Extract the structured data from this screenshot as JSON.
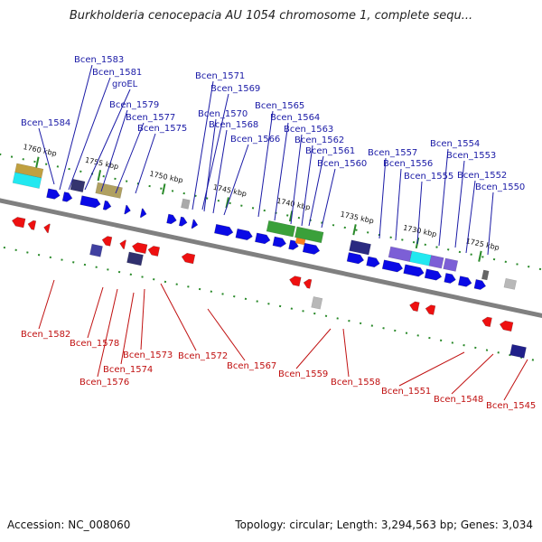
{
  "title": "Burkholderia cenocepacia AU 1054 chromosome 1, complete sequ...",
  "footer": {
    "accession": "Accession: NC_008060",
    "topology": "Topology: circular; Length: 3,294,563 bp; Genes: 3,034"
  },
  "colors": {
    "forward_gene": "#0a0ae6",
    "reverse_gene": "#ee1010",
    "backbone": "#808080",
    "tick": "#2a8a2a",
    "label_forward": "#1a1aa6",
    "label_reverse": "#c01010"
  },
  "position_ticks": [
    "1760 kbp",
    "1755 kbp",
    "1750 kbp",
    "1745 kbp",
    "1740 kbp",
    "1735 kbp",
    "1730 kbp",
    "1725 kbp"
  ],
  "forward_labels": [
    "Bcen_1583",
    "Bcen_1581",
    "groEL",
    "Bcen_1579",
    "Bcen_1577",
    "Bcen_1575",
    "Bcen_1584",
    "Bcen_1571",
    "Bcen_1569",
    "Bcen_1570",
    "Bcen_1568",
    "Bcen_1566",
    "Bcen_1565",
    "Bcen_1564",
    "Bcen_1563",
    "Bcen_1562",
    "Bcen_1561",
    "Bcen_1560",
    "Bcen_1557",
    "Bcen_1556",
    "Bcen_1555",
    "Bcen_1554",
    "Bcen_1553",
    "Bcen_1552",
    "Bcen_1550"
  ],
  "reverse_labels": [
    "Bcen_1582",
    "Bcen_1578",
    "Bcen_1576",
    "Bcen_1574",
    "Bcen_1573",
    "Bcen_1572",
    "Bcen_1567",
    "Bcen_1559",
    "Bcen_1558",
    "Bcen_1551",
    "Bcen_1548",
    "Bcen_1545"
  ]
}
